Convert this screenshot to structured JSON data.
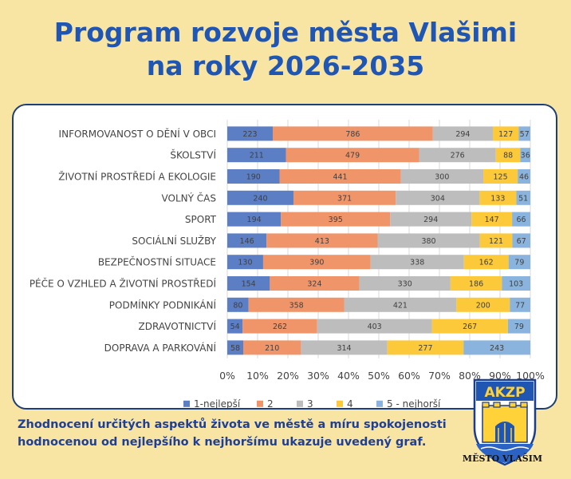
{
  "title": {
    "line1": "Program rozvoje města Vlašimi",
    "line2": "na roky 2026-2035"
  },
  "caption": {
    "line1": "Zhodnocení určitých aspektů života ve městě a míru spokojenosti",
    "line2": "hodnocenou od nejlepšího k nejhoršímu ukazuje uvedený graf."
  },
  "logo": {
    "text": "AKZP",
    "caption": "MĚSTO VLAŠIM"
  },
  "colors": {
    "title": "#1f56b4",
    "background": "#f8e5a4",
    "card_border": "#1c3f78"
  },
  "chart_data": {
    "type": "bar",
    "orientation": "horizontal",
    "stacked": "100%",
    "categories": [
      "INFORMOVANOST O DĚNÍ V OBCI",
      "ŠKOLSTVÍ",
      "ŽIVOTNÍ PROSTŘEDÍ A EKOLOGIE",
      "VOLNÝ ČAS",
      "SPORT",
      "SOCIÁLNÍ SLUŽBY",
      "BEZPEČNOSTNÍ SITUACE",
      "PÉČE O VZHLED A ŽIVOTNÍ PROSTŘEDÍ",
      "PODMÍNKY PODNIKÁNÍ",
      "ZDRAVOTNICTVÍ",
      "DOPRAVA A PARKOVÁNÍ"
    ],
    "series": [
      {
        "name": "1-nejlepší",
        "color": "#5b7ec4",
        "values": [
          223,
          211,
          190,
          240,
          194,
          146,
          130,
          154,
          80,
          54,
          58
        ]
      },
      {
        "name": "2",
        "color": "#f0956a",
        "values": [
          786,
          479,
          441,
          371,
          395,
          413,
          390,
          324,
          358,
          262,
          210
        ]
      },
      {
        "name": "3",
        "color": "#bdbdbd",
        "values": [
          294,
          276,
          300,
          304,
          294,
          380,
          338,
          330,
          421,
          403,
          314
        ]
      },
      {
        "name": "4",
        "color": "#fcc93a",
        "values": [
          127,
          88,
          125,
          133,
          147,
          121,
          162,
          186,
          200,
          267,
          277
        ]
      },
      {
        "name": "5 - nejhorší",
        "color": "#8ab4de",
        "values": [
          57,
          36,
          46,
          51,
          66,
          67,
          79,
          103,
          77,
          79,
          243
        ]
      }
    ],
    "xticks": [
      "0%",
      "10%",
      "20%",
      "30%",
      "40%",
      "50%",
      "60%",
      "70%",
      "80%",
      "90%",
      "100%"
    ],
    "xlim": [
      0,
      100
    ],
    "grid": true,
    "legend": "bottom"
  }
}
